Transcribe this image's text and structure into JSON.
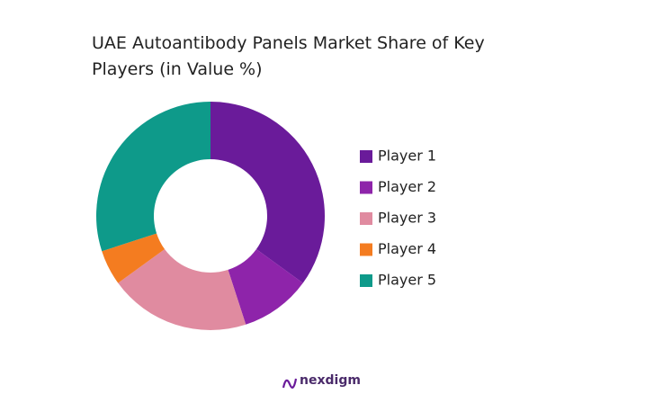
{
  "chart_data": {
    "type": "donut",
    "title": "UAE Autoantibody Panels Market Share of Key Players (in Value %)",
    "categories": [
      "Player 1",
      "Player 2",
      "Player 3",
      "Player 4",
      "Player 5"
    ],
    "values": [
      35,
      10,
      20,
      5,
      30
    ],
    "colors": [
      "#6a1b9a",
      "#8e24aa",
      "#e08ba0",
      "#f47c20",
      "#0e9a8a"
    ],
    "legend": "right"
  },
  "logo": "nexdigm"
}
